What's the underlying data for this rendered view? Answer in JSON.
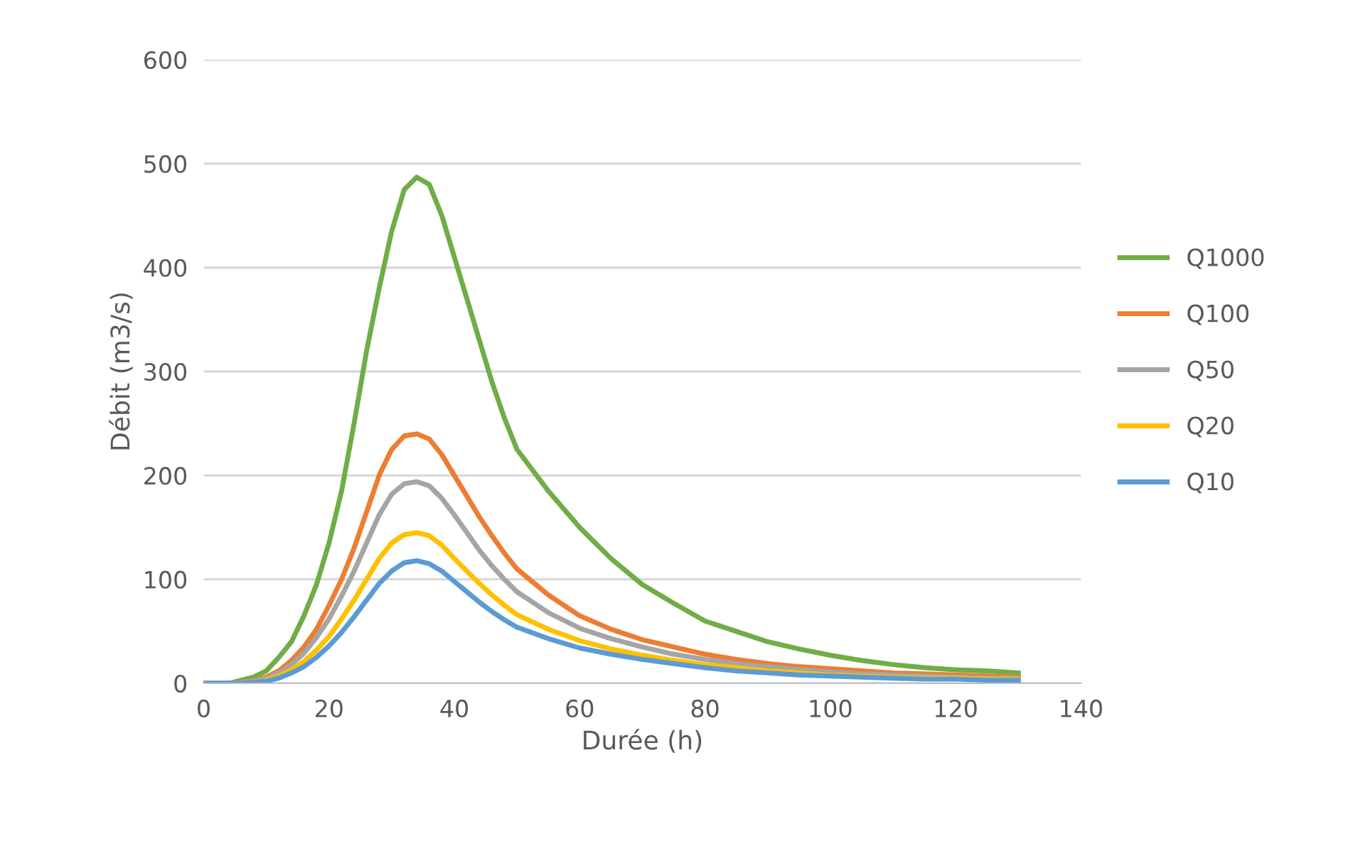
{
  "chart_data": {
    "type": "line",
    "xlabel": "Durée (h)",
    "ylabel": "Débit (m3/s)",
    "x": [
      0,
      4,
      6,
      8,
      10,
      12,
      14,
      16,
      18,
      20,
      22,
      24,
      26,
      28,
      30,
      32,
      34,
      36,
      38,
      40,
      42,
      44,
      46,
      48,
      50,
      55,
      60,
      65,
      70,
      75,
      80,
      85,
      90,
      95,
      100,
      105,
      110,
      115,
      120,
      125,
      130
    ],
    "series": [
      {
        "name": "Q1000",
        "color": "#70ad47",
        "values": [
          0,
          0,
          3,
          6,
          12,
          25,
          40,
          65,
          95,
          135,
          185,
          250,
          320,
          380,
          435,
          475,
          487,
          480,
          450,
          410,
          370,
          330,
          290,
          255,
          225,
          185,
          150,
          120,
          95,
          77,
          60,
          50,
          40,
          33,
          27,
          22,
          18,
          15,
          13,
          12,
          10
        ]
      },
      {
        "name": "Q100",
        "color": "#ed7d31",
        "values": [
          0,
          0,
          1,
          3,
          6,
          12,
          22,
          35,
          52,
          75,
          100,
          130,
          165,
          200,
          225,
          238,
          240,
          235,
          220,
          200,
          180,
          160,
          142,
          125,
          110,
          85,
          65,
          52,
          42,
          35,
          28,
          23,
          19,
          16,
          14,
          12,
          10,
          9,
          8,
          7,
          6
        ]
      },
      {
        "name": "Q50",
        "color": "#a5a5a5",
        "values": [
          0,
          0,
          1,
          2,
          5,
          10,
          18,
          29,
          44,
          62,
          84,
          108,
          135,
          162,
          182,
          192,
          194,
          190,
          178,
          162,
          145,
          128,
          113,
          100,
          88,
          68,
          53,
          43,
          35,
          28,
          23,
          19,
          16,
          13,
          11,
          9,
          8,
          7,
          6,
          5,
          5
        ]
      },
      {
        "name": "Q20",
        "color": "#ffc000",
        "values": [
          null,
          null,
          0,
          1,
          3,
          7,
          13,
          21,
          32,
          45,
          62,
          80,
          100,
          120,
          135,
          143,
          145,
          142,
          133,
          120,
          108,
          96,
          85,
          75,
          66,
          52,
          41,
          33,
          27,
          22,
          18,
          15,
          12,
          10,
          8,
          7,
          6,
          5,
          5,
          4,
          4
        ]
      },
      {
        "name": "Q10",
        "color": "#5b9bd5",
        "values": [
          0,
          0,
          0,
          1,
          2,
          5,
          10,
          16,
          25,
          36,
          49,
          64,
          80,
          96,
          108,
          116,
          118,
          115,
          108,
          98,
          88,
          78,
          69,
          61,
          54,
          43,
          34,
          28,
          23,
          19,
          15,
          12,
          10,
          8,
          7,
          6,
          5,
          4,
          4,
          3,
          3
        ]
      }
    ],
    "xlim": [
      0,
      140
    ],
    "xticks": [
      0,
      20,
      40,
      60,
      80,
      100,
      120,
      140
    ],
    "ylim": [
      0,
      600
    ],
    "yticks": [
      0,
      100,
      200,
      300,
      400,
      500,
      600
    ],
    "grid": "y",
    "legend": "right",
    "marker": "none",
    "line_style": "solid"
  }
}
